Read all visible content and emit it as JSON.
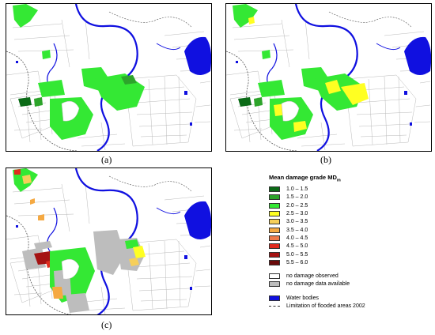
{
  "panels": [
    {
      "id": "a",
      "caption": "(a)"
    },
    {
      "id": "b",
      "caption": "(b)"
    },
    {
      "id": "c",
      "caption": "(c)"
    }
  ],
  "legend": {
    "title": "Mean damage grade MD",
    "title_sub": "m",
    "grades": [
      {
        "label": "1.0 – 1.5",
        "color": "#0b6b17"
      },
      {
        "label": "1.5 – 2.0",
        "color": "#2da42b"
      },
      {
        "label": "2.0 – 2.5",
        "color": "#34e834"
      },
      {
        "label": "2.5 – 3.0",
        "color": "#ffff22"
      },
      {
        "label": "3.0 – 3.5",
        "color": "#f6cf5a"
      },
      {
        "label": "3.5 – 4.0",
        "color": "#f5a942"
      },
      {
        "label": "4.0 – 4.5",
        "color": "#ef7a4a"
      },
      {
        "label": "4.5 – 5.0",
        "color": "#e02b1e"
      },
      {
        "label": "5.0 – 5.5",
        "color": "#a51313"
      },
      {
        "label": "5.5 – 6.0",
        "color": "#6a0a0a"
      }
    ],
    "status": [
      {
        "label": "no damage observed",
        "color": "#ffffff"
      },
      {
        "label": "no damage data available",
        "color": "#bdbdbd"
      }
    ],
    "water": {
      "label": "Water bodies",
      "color": "#1010e0"
    },
    "flood_limit": {
      "label": "Limitation of flooded areas 2002"
    }
  }
}
